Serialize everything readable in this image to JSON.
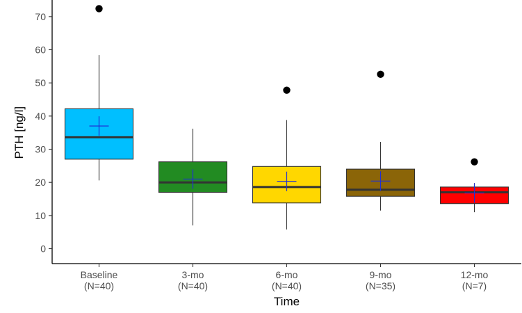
{
  "chart_data": {
    "type": "boxplot",
    "xlabel": "Time",
    "ylabel": "PTH [ng/l]",
    "ylim": [
      -4.5,
      75
    ],
    "yticks": [
      0,
      10,
      20,
      30,
      40,
      50,
      60,
      70
    ],
    "grid": false,
    "legend": "none",
    "groups": [
      {
        "label": "Baseline",
        "n_label": "(N=40)",
        "color": "#00bfff",
        "whisker_low": 20.6,
        "q1": 27.0,
        "median": 33.6,
        "q3": 42.2,
        "whisker_high": 58.4,
        "mean": 37.0,
        "outliers": [
          72.4
        ]
      },
      {
        "label": "3-mo",
        "n_label": "(N=40)",
        "color": "#228b22",
        "whisker_low": 7.0,
        "q1": 17.0,
        "median": 20.0,
        "q3": 26.2,
        "whisker_high": 36.2,
        "mean": 21.0,
        "outliers": []
      },
      {
        "label": "6-mo",
        "n_label": "(N=40)",
        "color": "#ffd700",
        "whisker_low": 5.8,
        "q1": 13.8,
        "median": 18.6,
        "q3": 24.8,
        "whisker_high": 38.8,
        "mean": 20.3,
        "outliers": [
          47.8
        ]
      },
      {
        "label": "9-mo",
        "n_label": "(N=35)",
        "color": "#8b6508",
        "whisker_low": 11.5,
        "q1": 15.8,
        "median": 17.8,
        "q3": 24.0,
        "whisker_high": 32.2,
        "mean": 20.4,
        "outliers": [
          52.6
        ]
      },
      {
        "label": "12-mo",
        "n_label": "(N=7)",
        "color": "#ff0000",
        "whisker_low": 11.0,
        "q1": 13.6,
        "median": 17.0,
        "q3": 18.6,
        "whisker_high": 19.8,
        "mean": 16.8,
        "outliers": [
          26.2
        ]
      }
    ]
  }
}
